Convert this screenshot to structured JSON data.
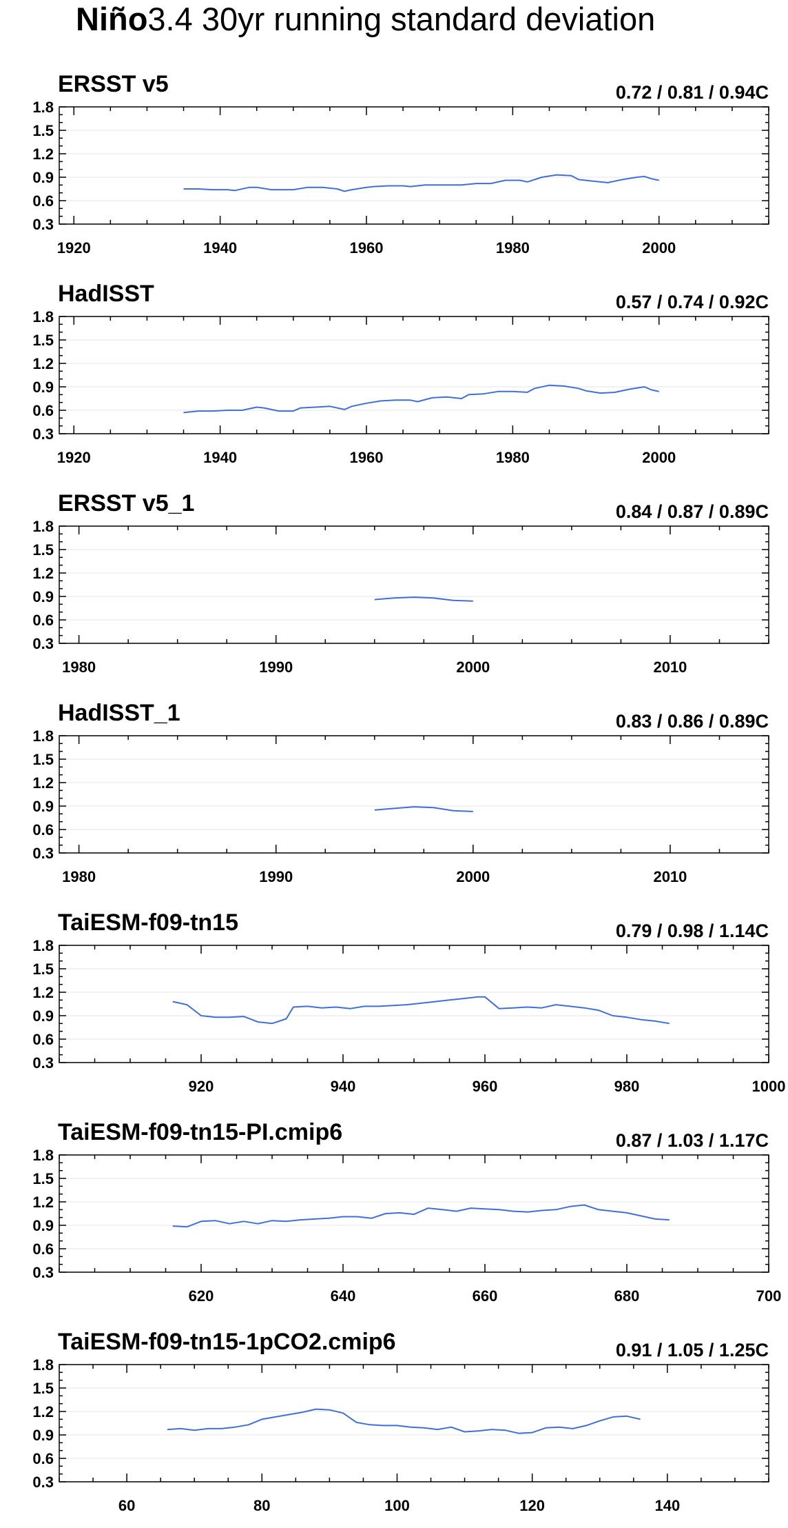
{
  "title_bold": "Niño",
  "title_rest": "3.4 30yr running standard deviation",
  "chart_data": [
    {
      "type": "line",
      "title": "ERSST v5",
      "stats": "0.72 / 0.81 / 0.94C",
      "xlim": [
        1918,
        2015
      ],
      "ylim": [
        0.3,
        1.8
      ],
      "xticks": [
        1920,
        1940,
        1960,
        1980,
        2000
      ],
      "yticks": [
        "0.3",
        "0.6",
        "0.9",
        "1.2",
        "1.5",
        "1.8"
      ],
      "x": [
        1935,
        1937,
        1939,
        1941,
        1942,
        1944,
        1945,
        1947,
        1949,
        1950,
        1952,
        1954,
        1956,
        1957,
        1958,
        1960,
        1961,
        1963,
        1965,
        1966,
        1968,
        1970,
        1972,
        1973,
        1975,
        1977,
        1979,
        1981,
        1982,
        1984,
        1986,
        1988,
        1989,
        1991,
        1993,
        1995,
        1997,
        1998,
        1999,
        2000
      ],
      "y": [
        0.75,
        0.75,
        0.74,
        0.74,
        0.73,
        0.77,
        0.77,
        0.74,
        0.74,
        0.74,
        0.77,
        0.77,
        0.75,
        0.72,
        0.74,
        0.77,
        0.78,
        0.79,
        0.79,
        0.78,
        0.8,
        0.8,
        0.8,
        0.8,
        0.82,
        0.82,
        0.86,
        0.86,
        0.84,
        0.9,
        0.93,
        0.92,
        0.87,
        0.85,
        0.83,
        0.87,
        0.9,
        0.91,
        0.88,
        0.86
      ]
    },
    {
      "type": "line",
      "title": "HadISST",
      "stats": "0.57 / 0.74 / 0.92C",
      "xlim": [
        1918,
        2015
      ],
      "ylim": [
        0.3,
        1.8
      ],
      "xticks": [
        1920,
        1940,
        1960,
        1980,
        2000
      ],
      "yticks": [
        "0.3",
        "0.6",
        "0.9",
        "1.2",
        "1.5",
        "1.8"
      ],
      "x": [
        1935,
        1937,
        1939,
        1941,
        1943,
        1945,
        1946,
        1948,
        1950,
        1951,
        1953,
        1955,
        1957,
        1958,
        1960,
        1962,
        1964,
        1966,
        1967,
        1969,
        1971,
        1973,
        1974,
        1976,
        1978,
        1980,
        1982,
        1983,
        1985,
        1987,
        1989,
        1990,
        1992,
        1994,
        1996,
        1998,
        1999,
        2000
      ],
      "y": [
        0.57,
        0.59,
        0.59,
        0.6,
        0.6,
        0.64,
        0.63,
        0.59,
        0.59,
        0.63,
        0.64,
        0.65,
        0.61,
        0.65,
        0.69,
        0.72,
        0.73,
        0.73,
        0.71,
        0.76,
        0.77,
        0.75,
        0.8,
        0.81,
        0.84,
        0.84,
        0.83,
        0.88,
        0.92,
        0.91,
        0.88,
        0.85,
        0.82,
        0.83,
        0.87,
        0.9,
        0.86,
        0.84
      ]
    },
    {
      "type": "line",
      "title": "ERSST v5_1",
      "stats": "0.84 / 0.87 / 0.89C",
      "xlim": [
        1979,
        2015
      ],
      "ylim": [
        0.3,
        1.8
      ],
      "xticks": [
        1980,
        1990,
        2000,
        2010
      ],
      "yticks": [
        "0.3",
        "0.6",
        "0.9",
        "1.2",
        "1.5",
        "1.8"
      ],
      "x": [
        1995,
        1996,
        1997,
        1998,
        1999,
        2000
      ],
      "y": [
        0.86,
        0.88,
        0.89,
        0.88,
        0.85,
        0.84
      ]
    },
    {
      "type": "line",
      "title": "HadISST_1",
      "stats": "0.83 / 0.86 / 0.89C",
      "xlim": [
        1979,
        2015
      ],
      "ylim": [
        0.3,
        1.8
      ],
      "xticks": [
        1980,
        1990,
        2000,
        2010
      ],
      "yticks": [
        "0.3",
        "0.6",
        "0.9",
        "1.2",
        "1.5",
        "1.8"
      ],
      "x": [
        1995,
        1996,
        1997,
        1998,
        1999,
        2000
      ],
      "y": [
        0.85,
        0.87,
        0.89,
        0.88,
        0.84,
        0.83
      ]
    },
    {
      "type": "line",
      "title": "TaiESM-f09-tn15",
      "stats": "0.79 / 0.98 / 1.14C",
      "xlim": [
        900,
        1000
      ],
      "ylim": [
        0.3,
        1.8
      ],
      "xticks": [
        920,
        940,
        960,
        980,
        1000
      ],
      "yticks": [
        "0.3",
        "0.6",
        "0.9",
        "1.2",
        "1.5",
        "1.8"
      ],
      "x": [
        916,
        918,
        920,
        922,
        924,
        926,
        928,
        930,
        932,
        933,
        935,
        937,
        939,
        941,
        943,
        945,
        947,
        949,
        951,
        953,
        955,
        957,
        959,
        960,
        962,
        964,
        966,
        968,
        970,
        972,
        974,
        976,
        978,
        980,
        982,
        984,
        986
      ],
      "y": [
        1.08,
        1.04,
        0.9,
        0.88,
        0.88,
        0.89,
        0.82,
        0.8,
        0.86,
        1.01,
        1.02,
        1.0,
        1.01,
        0.99,
        1.02,
        1.02,
        1.03,
        1.04,
        1.06,
        1.08,
        1.1,
        1.12,
        1.14,
        1.14,
        0.99,
        1.0,
        1.01,
        1.0,
        1.04,
        1.02,
        1.0,
        0.97,
        0.9,
        0.88,
        0.85,
        0.83,
        0.8
      ]
    },
    {
      "type": "line",
      "title": "TaiESM-f09-tn15-PI.cmip6",
      "stats": "0.87 / 1.03 / 1.17C",
      "xlim": [
        600,
        700
      ],
      "ylim": [
        0.3,
        1.8
      ],
      "xticks": [
        620,
        640,
        660,
        680,
        700
      ],
      "yticks": [
        "0.3",
        "0.6",
        "0.9",
        "1.2",
        "1.5",
        "1.8"
      ],
      "x": [
        616,
        618,
        620,
        622,
        624,
        626,
        628,
        630,
        632,
        634,
        636,
        638,
        640,
        642,
        644,
        646,
        648,
        650,
        652,
        654,
        656,
        658,
        660,
        662,
        664,
        666,
        668,
        670,
        672,
        674,
        676,
        678,
        680,
        682,
        684,
        686
      ],
      "y": [
        0.89,
        0.88,
        0.95,
        0.96,
        0.92,
        0.95,
        0.92,
        0.96,
        0.95,
        0.97,
        0.98,
        0.99,
        1.01,
        1.01,
        0.99,
        1.05,
        1.06,
        1.04,
        1.12,
        1.1,
        1.08,
        1.12,
        1.11,
        1.1,
        1.08,
        1.07,
        1.09,
        1.1,
        1.14,
        1.16,
        1.1,
        1.08,
        1.06,
        1.02,
        0.98,
        0.97
      ]
    },
    {
      "type": "line",
      "title": "TaiESM-f09-tn15-1pCO2.cmip6",
      "stats": "0.91 / 1.05 / 1.25C",
      "xlim": [
        50,
        155
      ],
      "ylim": [
        0.3,
        1.8
      ],
      "xticks": [
        60,
        80,
        100,
        120,
        140
      ],
      "yticks": [
        "0.3",
        "0.6",
        "0.9",
        "1.2",
        "1.5",
        "1.8"
      ],
      "x": [
        66,
        68,
        70,
        72,
        74,
        76,
        78,
        80,
        82,
        84,
        86,
        88,
        90,
        92,
        94,
        96,
        98,
        100,
        102,
        104,
        106,
        108,
        110,
        112,
        114,
        116,
        118,
        120,
        122,
        124,
        126,
        128,
        130,
        132,
        134,
        136
      ],
      "y": [
        0.97,
        0.98,
        0.96,
        0.98,
        0.98,
        1.0,
        1.03,
        1.1,
        1.13,
        1.16,
        1.19,
        1.23,
        1.22,
        1.18,
        1.06,
        1.03,
        1.02,
        1.02,
        1.0,
        0.99,
        0.97,
        1.0,
        0.94,
        0.95,
        0.97,
        0.96,
        0.92,
        0.93,
        0.99,
        1.0,
        0.98,
        1.02,
        1.08,
        1.13,
        1.14,
        1.1
      ]
    }
  ]
}
